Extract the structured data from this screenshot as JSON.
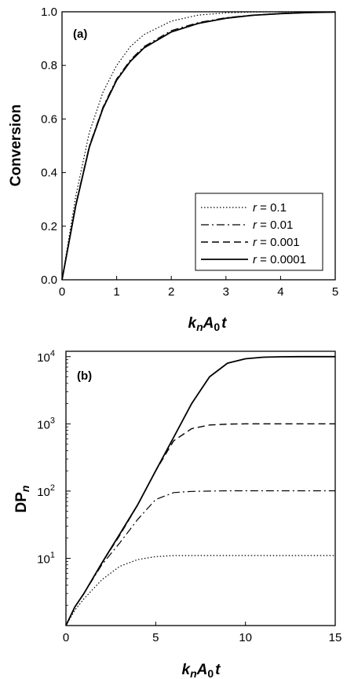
{
  "chart_data": [
    {
      "type": "line",
      "panel_label": "(a)",
      "xlabel": {
        "k": "k",
        "n": "n",
        "A": "A",
        "zero": "0",
        "t": "t"
      },
      "ylabel": "Conversion",
      "xlim": [
        0,
        5
      ],
      "ylim": [
        0,
        1.0
      ],
      "x_ticks": [
        "0",
        "1",
        "2",
        "3",
        "4",
        "5"
      ],
      "y_ticks": [
        "0.0",
        "0.2",
        "0.4",
        "0.6",
        "0.8",
        "1.0"
      ],
      "legend_position": "lower-right",
      "x": [
        0,
        0.25,
        0.5,
        0.75,
        1.0,
        1.25,
        1.5,
        2.0,
        2.5,
        3.0,
        3.5,
        4.0,
        4.5,
        5.0
      ],
      "series": [
        {
          "legend": "r = 0.1",
          "style": "dotted",
          "values": [
            0.0,
            0.31,
            0.55,
            0.7,
            0.8,
            0.87,
            0.915,
            0.965,
            0.988,
            0.996,
            0.999,
            1.0,
            1.0,
            1.0
          ]
        },
        {
          "legend": "r = 0.01",
          "style": "dashdot",
          "values": [
            0.0,
            0.28,
            0.5,
            0.645,
            0.75,
            0.82,
            0.87,
            0.93,
            0.96,
            0.978,
            0.988,
            0.994,
            0.997,
            0.999
          ]
        },
        {
          "legend": "r = 0.001",
          "style": "dashed",
          "values": [
            0.0,
            0.275,
            0.495,
            0.64,
            0.745,
            0.815,
            0.865,
            0.925,
            0.957,
            0.976,
            0.987,
            0.993,
            0.997,
            0.999
          ]
        },
        {
          "legend": "r = 0.0001",
          "style": "solid",
          "values": [
            0.0,
            0.275,
            0.495,
            0.64,
            0.745,
            0.815,
            0.865,
            0.925,
            0.957,
            0.976,
            0.987,
            0.993,
            0.997,
            0.999
          ]
        }
      ]
    },
    {
      "type": "line",
      "panel_label": "(b)",
      "xlabel": {
        "k": "k",
        "n": "n",
        "A": "A",
        "zero": "0",
        "t": "t"
      },
      "ylabel": {
        "main": "DP",
        "sub": "n"
      },
      "xlim": [
        0,
        15
      ],
      "ylim": [
        1,
        10000
      ],
      "y_scale": "log",
      "x_ticks": [
        "0",
        "5",
        "10",
        "15"
      ],
      "y_ticks": [
        {
          "base": "10",
          "exp": "1",
          "value": 10
        },
        {
          "base": "10",
          "exp": "2",
          "value": 100
        },
        {
          "base": "10",
          "exp": "3",
          "value": 1000
        },
        {
          "base": "10",
          "exp": "4",
          "value": 10000
        }
      ],
      "x": [
        0,
        0.5,
        1,
        2,
        3,
        4,
        5,
        6,
        7,
        8,
        9,
        10,
        11,
        12,
        13,
        14,
        15
      ],
      "series": [
        {
          "legend": "r = 0.1",
          "style": "dotted",
          "values": [
            1,
            1.7,
            2.5,
            4.8,
            7.6,
            9.6,
            10.6,
            11.0,
            11.0,
            11.0,
            11.0,
            11.0,
            11.0,
            11.0,
            11.0,
            11.0,
            11.0
          ]
        },
        {
          "legend": "r = 0.01",
          "style": "dashdot",
          "values": [
            1,
            1.9,
            3.0,
            8.0,
            17,
            38,
            75,
            95,
            99,
            100,
            101,
            101,
            101,
            101,
            101,
            101,
            101
          ]
        },
        {
          "legend": "r = 0.001",
          "style": "dashed",
          "values": [
            1,
            1.9,
            3.0,
            8.5,
            22,
            63,
            200,
            560,
            850,
            960,
            990,
            1000,
            1000,
            1000,
            1000,
            1000,
            1000
          ]
        },
        {
          "legend": "r = 0.0001",
          "style": "solid",
          "values": [
            1,
            1.9,
            3.0,
            8.5,
            23,
            63,
            200,
            630,
            2000,
            5000,
            8000,
            9300,
            9800,
            9950,
            10000,
            10000,
            10000
          ]
        }
      ]
    }
  ]
}
